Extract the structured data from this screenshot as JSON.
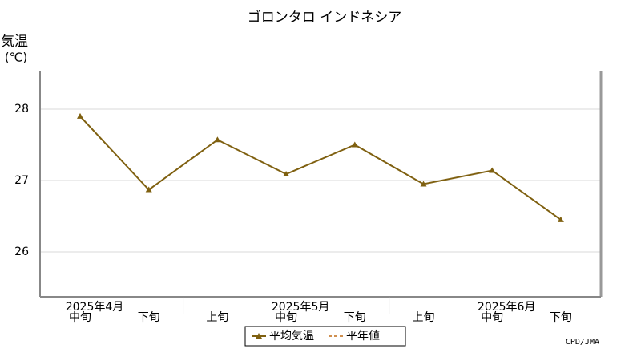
{
  "chart_data": {
    "type": "line",
    "title": "ゴロンタロ インドネシア",
    "y_label": [
      "気温",
      "(℃)"
    ],
    "categories": [
      "中旬",
      "下旬",
      "上旬",
      "中旬",
      "下旬",
      "上旬",
      "中旬",
      "下旬"
    ],
    "month_groups": [
      {
        "label": "2025年4月",
        "size": 2
      },
      {
        "label": "2025年5月",
        "size": 3
      },
      {
        "label": "2025年6月",
        "size": 3
      }
    ],
    "series": [
      {
        "name": "平均気温",
        "color": "#7f6010",
        "dashed": false,
        "marker": "triangle",
        "values": [
          27.9,
          26.87,
          27.57,
          27.09,
          27.5,
          26.95,
          27.14,
          26.45
        ]
      },
      {
        "name": "平年値",
        "color": "#d09050",
        "dashed": true,
        "marker": null,
        "values": [
          null,
          null,
          null,
          null,
          null,
          null,
          null,
          null
        ]
      }
    ],
    "ylim": [
      25.37,
      28.54
    ],
    "yticks": [
      26,
      27,
      28
    ],
    "grid": true,
    "source": "CPD/JMA"
  }
}
